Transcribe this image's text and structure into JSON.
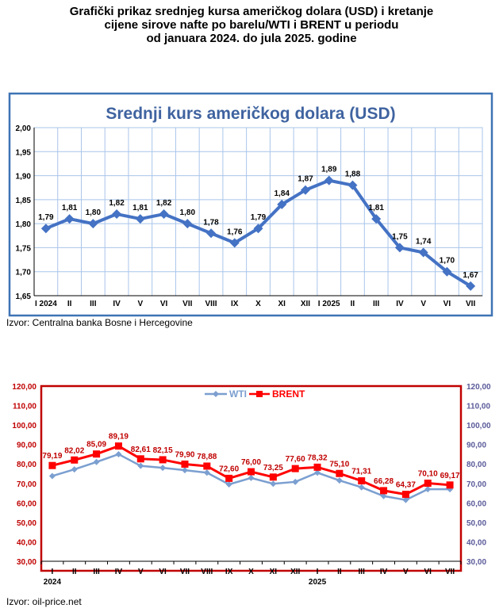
{
  "page": {
    "title_lines": [
      "Grafički prikaz srednjeg kursa američkog dolara (USD) i kretanje",
      "cijene sirove nafte po barelu/WTI i BRENT u periodu",
      "od januara 2024. do jula 2025. godine"
    ],
    "source1": "Izvor: Centralna  banka Bosne i Hercegovine",
    "source2": "Izvor: oil-price.net"
  },
  "colors": {
    "usd_line": "#4472C4",
    "usd_frame": "#3F73B5",
    "grid_blue": "#A9C5EA",
    "wti": "#7B9FD0",
    "brent": "#FF0000",
    "oil_frame": "#C00000",
    "left_axis_text": "#C00000",
    "right_axis_text": "#5A5A9A"
  },
  "chart_data": [
    {
      "type": "line",
      "title": "Srednji kurs američkog dolara (USD)",
      "categories": [
        "I 2024",
        "II",
        "III",
        "IV",
        "V",
        "VI",
        "VII",
        "VIII",
        "IX",
        "X",
        "XI",
        "XII",
        "I 2025",
        "II",
        "III",
        "IV",
        "V",
        "VI",
        "VII"
      ],
      "series": [
        {
          "values": [
            1.79,
            1.81,
            1.8,
            1.82,
            1.81,
            1.82,
            1.8,
            1.78,
            1.76,
            1.79,
            1.84,
            1.87,
            1.89,
            1.88,
            1.81,
            1.75,
            1.74,
            1.7,
            1.67
          ],
          "labels": [
            "1,79",
            "1,81",
            "1,80",
            "1,82",
            "1,81",
            "1,82",
            "1,80",
            "1,78",
            "1,76",
            "1,79",
            "1,84",
            "1,87",
            "1,89",
            "1,88",
            "1,81",
            "1,75",
            "1,74",
            "1,70",
            "1,67"
          ]
        }
      ],
      "ylim": [
        1.65,
        2.0
      ],
      "yticks": [
        "1,65",
        "1,70",
        "1,75",
        "1,80",
        "1,85",
        "1,90",
        "1,95",
        "2,00"
      ],
      "grid": true
    },
    {
      "type": "line",
      "categories": [
        "I",
        "II",
        "III",
        "IV",
        "V",
        "VI",
        "VII",
        "VIII",
        "IX",
        "X",
        "XI",
        "XII",
        "I",
        "II",
        "III",
        "IV",
        "V",
        "VI",
        "VII"
      ],
      "year_labels": [
        "2024",
        "2025"
      ],
      "series": [
        {
          "name": "WTI",
          "values": [
            73.8,
            77.2,
            81.0,
            85.0,
            79.0,
            78.0,
            76.8,
            75.5,
            69.5,
            72.8,
            69.8,
            70.8,
            75.5,
            71.5,
            68.0,
            63.5,
            61.5,
            67.0,
            67.0
          ]
        },
        {
          "name": "BRENT",
          "values": [
            79.19,
            82.02,
            85.09,
            89.19,
            82.61,
            82.15,
            79.9,
            78.88,
            72.6,
            76.0,
            73.25,
            77.6,
            78.32,
            75.1,
            71.31,
            66.28,
            64.37,
            70.1,
            69.17
          ],
          "labels": [
            "79,19",
            "82,02",
            "85,09",
            "89,19",
            "82,61",
            "82,15",
            "79,90",
            "78,88",
            "72,60",
            "76,00",
            "73,25",
            "77,60",
            "78,32",
            "75,10",
            "71,31",
            "66,28",
            "64,37",
            "70,10",
            "69,17"
          ]
        }
      ],
      "ylim": [
        30,
        120
      ],
      "yticks": [
        "30,00",
        "40,00",
        "50,00",
        "60,00",
        "70,00",
        "80,00",
        "90,00",
        "100,00",
        "110,00",
        "120,00"
      ],
      "legend": "top-center",
      "grid": false
    }
  ]
}
